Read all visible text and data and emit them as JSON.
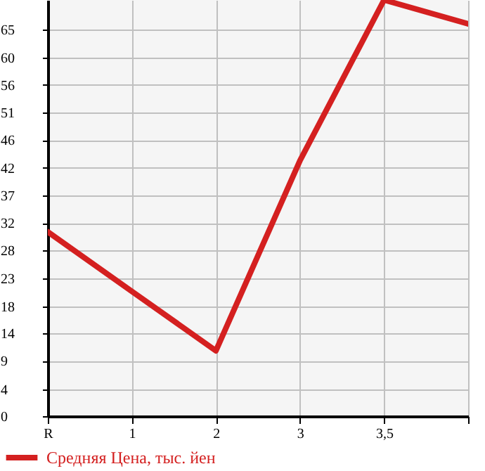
{
  "chart_data": {
    "type": "line",
    "categories": [
      "R",
      "1",
      "2",
      "3",
      "3,5",
      null
    ],
    "series": [
      {
        "name": "Средняя Цена, тыс. йен",
        "color": "#d42020",
        "values": [
          31,
          21,
          11,
          43,
          70,
          66
        ]
      }
    ],
    "ylim": [
      0,
      70
    ],
    "yticks": [
      0,
      {
        "value": 4.5,
        "label": "4"
      },
      {
        "value": 9.29,
        "label": "9"
      },
      {
        "value": 13.93,
        "label": "14"
      },
      {
        "value": 18.5,
        "label": "18"
      },
      {
        "value": 23.21,
        "label": "23"
      },
      {
        "value": 27.86,
        "label": "28"
      },
      {
        "value": 32.5,
        "label": "32"
      },
      {
        "value": 37.14,
        "label": "37"
      },
      {
        "value": 41.79,
        "label": "42"
      },
      {
        "value": 46.43,
        "label": "46"
      },
      {
        "value": 51.07,
        "label": "51"
      },
      {
        "value": 55.71,
        "label": "56"
      },
      {
        "value": 60.36,
        "label": "60"
      },
      65
    ],
    "grid": true,
    "legend": "bottom left",
    "marker": "none",
    "line_style": "solid"
  }
}
